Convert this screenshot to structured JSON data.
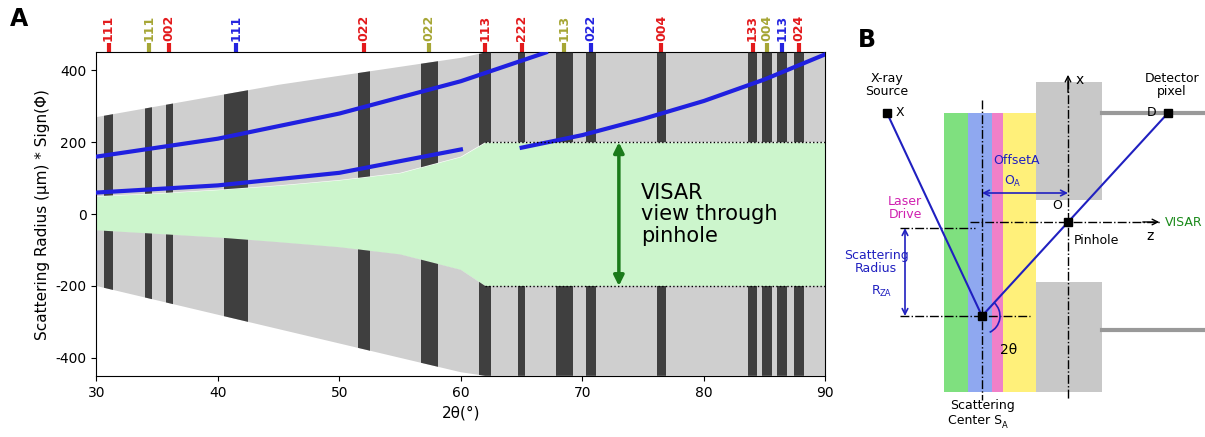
{
  "chart_data": {
    "type": "image_plot",
    "panel_label": "A",
    "xlabel": "2θ(°)",
    "ylabel": "Scattering Radius (µm) * Sign(Φ)",
    "xlim": [
      30,
      90
    ],
    "ylim": [
      -450,
      450
    ],
    "xticks": [
      30,
      40,
      50,
      60,
      70,
      80,
      90
    ],
    "yticks": [
      -400,
      -200,
      0,
      200,
      400
    ],
    "peaks": [
      {
        "label": "111",
        "two_theta": 31.0,
        "color": "#e31a1c",
        "width": 0.8
      },
      {
        "label": "111",
        "two_theta": 34.3,
        "color": "#a6a635",
        "width": 0.6
      },
      {
        "label": "002",
        "two_theta": 36.0,
        "color": "#e31a1c",
        "width": 0.6
      },
      {
        "label": "111",
        "two_theta": 41.5,
        "color": "#2424e0",
        "width": 2.0
      },
      {
        "label": "022",
        "two_theta": 52.0,
        "color": "#e31a1c",
        "width": 1.0
      },
      {
        "label": "022",
        "two_theta": 57.4,
        "color": "#a6a635",
        "width": 1.4
      },
      {
        "label": "113",
        "two_theta": 62.0,
        "color": "#e31a1c",
        "width": 1.0
      },
      {
        "label": "222",
        "two_theta": 65.0,
        "color": "#e31a1c",
        "width": 0.6
      },
      {
        "label": "113",
        "two_theta": 68.5,
        "color": "#a6a635",
        "width": 1.4
      },
      {
        "label": "022",
        "two_theta": 70.7,
        "color": "#2424e0",
        "width": 0.8
      },
      {
        "label": "004",
        "two_theta": 76.5,
        "color": "#e31a1c",
        "width": 0.8
      },
      {
        "label": "133",
        "two_theta": 84.0,
        "color": "#e31a1c",
        "width": 0.8
      },
      {
        "label": "004",
        "two_theta": 85.2,
        "color": "#a6a635",
        "width": 0.8
      },
      {
        "label": "113",
        "two_theta": 86.4,
        "color": "#2424e0",
        "width": 0.8
      },
      {
        "label": "024",
        "two_theta": 87.8,
        "color": "#e31a1c",
        "width": 0.8
      }
    ],
    "coverage": {
      "x": [
        30,
        35,
        40,
        45,
        50,
        55,
        60,
        62,
        65,
        70,
        75,
        80,
        85,
        90
      ],
      "upper_inner": [
        50,
        58,
        68,
        80,
        95,
        115,
        160,
        200,
        200,
        200,
        200,
        200,
        200,
        200
      ],
      "upper_outer": [
        270,
        300,
        330,
        360,
        385,
        410,
        435,
        450,
        450,
        450,
        450,
        450,
        450,
        450
      ],
      "lower_inner": [
        -45,
        -55,
        -65,
        -78,
        -92,
        -112,
        -155,
        -200,
        -200,
        -200,
        -200,
        -200,
        -200,
        -200
      ],
      "lower_outer": [
        -200,
        -240,
        -280,
        -320,
        -360,
        -400,
        -440,
        -450,
        -450,
        -450,
        -450,
        -450,
        -450,
        -450
      ]
    },
    "curves": [
      {
        "color": "#2020e0",
        "x": [
          30,
          40,
          50,
          60,
          67
        ],
        "values": [
          160,
          210,
          280,
          370,
          450
        ]
      },
      {
        "color": "#2020e0",
        "x": [
          30,
          40,
          50,
          60
        ],
        "values": [
          60,
          80,
          115,
          180
        ]
      },
      {
        "color": "#2020e0",
        "x": [
          65,
          70,
          75,
          80,
          85,
          90
        ],
        "values": [
          185,
          220,
          265,
          315,
          375,
          445
        ]
      }
    ],
    "visar": {
      "text": "VISAR\nview through\npinhole",
      "half_width": 200,
      "arrow_x": 73,
      "color": "#1a7a1a"
    }
  },
  "diagram": {
    "panel_label": "B",
    "x_ray_source": "X-ray\nSource",
    "x_point": "X",
    "detector": "Detector\npixel",
    "d_point": "D",
    "laser": {
      "text": "Laser\nDrive",
      "color": "#d020b0"
    },
    "offset": {
      "text": "OffsetA",
      "main": "O",
      "sub": "A",
      "color": "#2020c0"
    },
    "origin": "O",
    "pinhole": "Pinhole",
    "axis_z": "z",
    "axis_x": "x",
    "visar": {
      "text": "VISAR",
      "color": "#1a8a1a"
    },
    "radius": {
      "text": "Scattering\nRadius",
      "main": "R",
      "sub": "ZA",
      "color": "#2020c0"
    },
    "center": {
      "line1": "Scattering",
      "line2": "Center S",
      "sub": "A"
    },
    "angle": "2θ"
  }
}
